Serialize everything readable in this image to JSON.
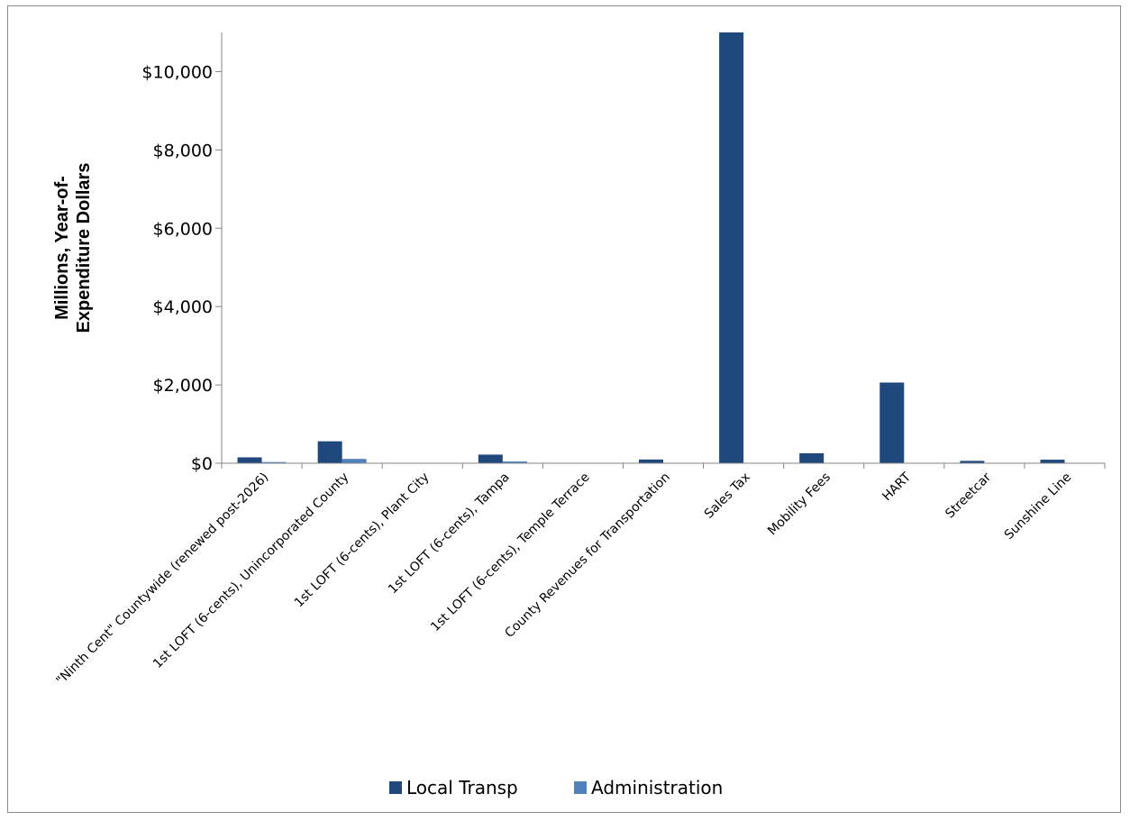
{
  "chart_data": {
    "type": "bar",
    "categories": [
      "\"Ninth Cent\" Countywide (renewed post-2026)",
      "1st LOFT (6-cents), Unincorporated County",
      "1st LOFT (6-cents), Plant City",
      "1st LOFT (6-cents), Tampa",
      "1st LOFT (6-cents), Temple Terrace",
      "County Revenues for Transportation",
      "Sales Tax",
      "Mobility Fees",
      "HART",
      "Streetcar",
      "Sunshine Line"
    ],
    "series": [
      {
        "name": "Local Transp",
        "color": "#1f497d",
        "values": [
          150,
          560,
          10,
          220,
          8,
          95,
          11000,
          255,
          2060,
          60,
          90
        ]
      },
      {
        "name": "Administration",
        "color": "#4f81bd",
        "values": [
          30,
          110,
          2,
          45,
          2,
          0,
          0,
          0,
          0,
          0,
          0
        ]
      }
    ],
    "ylabel": "Millions, Year-of-Expenditure Dollars",
    "ylabel_lines": [
      "Millions, Year-of-",
      "Expenditure Dollars"
    ],
    "xlabel": "",
    "ylim": [
      0,
      11000
    ],
    "yticks": [
      0,
      2000,
      4000,
      6000,
      8000,
      10000
    ],
    "ytick_labels": [
      "$0",
      "$2,000",
      "$4,000",
      "$6,000",
      "$8,000",
      "$10,000"
    ],
    "grid": false,
    "legend_position": "bottom"
  }
}
